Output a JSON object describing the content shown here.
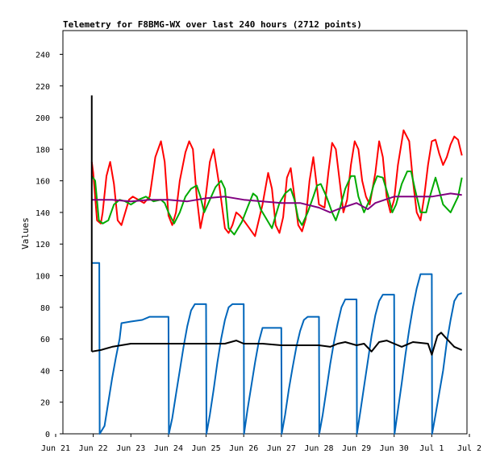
{
  "chart_data": {
    "type": "line",
    "title": "Telemetry for F8BMG-WX over last 240 hours (2712 points)",
    "xlabel": "",
    "ylabel": "Values",
    "x_ticks": [
      "Jun 21",
      "Jun 22",
      "Jun 23",
      "Jun 24",
      "Jun 25",
      "Jun 26",
      "Jun 27",
      "Jun 28",
      "Jun 29",
      "Jun 30",
      "Jul 1",
      "Jul 2"
    ],
    "y_ticks": [
      0,
      20,
      40,
      60,
      80,
      100,
      120,
      140,
      160,
      180,
      200,
      220,
      240
    ],
    "ylim": [
      0,
      255
    ],
    "xlim": [
      0,
      11
    ],
    "grid": false,
    "colors": {
      "red": "#ff0000",
      "green": "#00aa00",
      "purple": "#800080",
      "blue": "#0066bb",
      "black": "#000000"
    },
    "series": [
      {
        "color": "red",
        "x": [
          0.96,
          1.0,
          1.1,
          1.2,
          1.25,
          1.35,
          1.45,
          1.55,
          1.65,
          1.75,
          1.85,
          1.95,
          2.05,
          2.2,
          2.35,
          2.5,
          2.65,
          2.8,
          2.9,
          3.0,
          3.1,
          3.2,
          3.3,
          3.45,
          3.55,
          3.65,
          3.75,
          3.85,
          3.95,
          4.1,
          4.2,
          4.35,
          4.5,
          4.6,
          4.7,
          4.8,
          4.9,
          5.0,
          5.15,
          5.3,
          5.5,
          5.65,
          5.75,
          5.85,
          5.95,
          6.05,
          6.15,
          6.25,
          6.35,
          6.45,
          6.55,
          6.65,
          6.75,
          6.85,
          7.0,
          7.15,
          7.25,
          7.35,
          7.45,
          7.55,
          7.65,
          7.75,
          7.85,
          7.95,
          8.05,
          8.15,
          8.25,
          8.35,
          8.5,
          8.6,
          8.7,
          8.8,
          8.9,
          9.0,
          9.1,
          9.25,
          9.4,
          9.5,
          9.6,
          9.7,
          9.8,
          9.9,
          10.0,
          10.1,
          10.2,
          10.3,
          10.4,
          10.5,
          10.6,
          10.7,
          10.8
        ],
        "y": [
          172,
          165,
          135,
          133,
          140,
          163,
          172,
          158,
          135,
          132,
          140,
          148,
          150,
          148,
          146,
          150,
          175,
          185,
          172,
          138,
          132,
          140,
          160,
          178,
          185,
          180,
          150,
          130,
          142,
          172,
          180,
          157,
          130,
          127,
          132,
          140,
          138,
          135,
          130,
          125,
          145,
          165,
          155,
          132,
          127,
          137,
          162,
          168,
          150,
          132,
          128,
          136,
          160,
          175,
          145,
          143,
          165,
          184,
          180,
          160,
          140,
          148,
          170,
          185,
          180,
          160,
          150,
          145,
          165,
          185,
          175,
          150,
          140,
          148,
          170,
          192,
          185,
          160,
          140,
          135,
          150,
          170,
          185,
          186,
          177,
          170,
          175,
          183,
          188,
          186,
          176
        ]
      },
      {
        "color": "green",
        "x": [
          0.96,
          1.05,
          1.15,
          1.25,
          1.4,
          1.55,
          1.7,
          1.85,
          2.0,
          2.2,
          2.4,
          2.6,
          2.8,
          2.9,
          3.0,
          3.15,
          3.3,
          3.45,
          3.6,
          3.75,
          3.85,
          3.95,
          4.1,
          4.25,
          4.4,
          4.5,
          4.6,
          4.75,
          4.95,
          5.1,
          5.25,
          5.35,
          5.45,
          5.6,
          5.75,
          5.85,
          5.95,
          6.1,
          6.25,
          6.35,
          6.45,
          6.55,
          6.7,
          6.85,
          6.95,
          7.05,
          7.2,
          7.35,
          7.45,
          7.55,
          7.7,
          7.85,
          7.95,
          8.05,
          8.2,
          8.35,
          8.45,
          8.55,
          8.7,
          8.85,
          8.95,
          9.05,
          9.2,
          9.35,
          9.45,
          9.55,
          9.7,
          9.85,
          9.95,
          10.1,
          10.3,
          10.5,
          10.7,
          10.8
        ],
        "y": [
          163,
          160,
          135,
          133,
          135,
          145,
          148,
          147,
          145,
          148,
          150,
          147,
          148,
          146,
          140,
          133,
          140,
          150,
          155,
          157,
          150,
          140,
          148,
          156,
          160,
          155,
          130,
          126,
          134,
          143,
          152,
          150,
          142,
          136,
          130,
          138,
          146,
          152,
          155,
          148,
          136,
          132,
          140,
          150,
          157,
          158,
          150,
          140,
          135,
          142,
          155,
          163,
          163,
          150,
          140,
          148,
          157,
          163,
          162,
          150,
          140,
          145,
          158,
          166,
          166,
          155,
          140,
          140,
          150,
          162,
          145,
          140,
          150,
          162
        ]
      },
      {
        "color": "purple",
        "x": [
          0.96,
          1.5,
          2.0,
          2.5,
          3.0,
          3.5,
          4.0,
          4.5,
          5.0,
          5.5,
          6.0,
          6.5,
          7.0,
          7.3,
          7.5,
          8.0,
          8.3,
          8.5,
          9.0,
          9.5,
          10.0,
          10.5,
          10.8
        ],
        "y": [
          148,
          148,
          147,
          148,
          148,
          147,
          149,
          150,
          148,
          147,
          146,
          146,
          143,
          140,
          142,
          146,
          142,
          146,
          150,
          150,
          150,
          152,
          151
        ]
      },
      {
        "color": "blue",
        "x": [
          0.96,
          1.16,
          1.17,
          1.3,
          1.4,
          1.5,
          1.6,
          1.7,
          1.75,
          2.0,
          2.3,
          2.5,
          2.8,
          3.0,
          3.01,
          3.1,
          3.2,
          3.3,
          3.4,
          3.5,
          3.6,
          3.7,
          3.75,
          4.0,
          4.01,
          4.1,
          4.2,
          4.3,
          4.4,
          4.5,
          4.6,
          4.7,
          5.0,
          5.01,
          5.1,
          5.2,
          5.3,
          5.4,
          5.5,
          5.7,
          5.8,
          6.0,
          6.01,
          6.1,
          6.2,
          6.3,
          6.4,
          6.5,
          6.6,
          6.7,
          7.0,
          7.01,
          7.1,
          7.2,
          7.3,
          7.4,
          7.5,
          7.6,
          7.7,
          8.0,
          8.01,
          8.1,
          8.2,
          8.3,
          8.4,
          8.5,
          8.6,
          8.7,
          9.0,
          9.01,
          9.1,
          9.2,
          9.3,
          9.4,
          9.5,
          9.6,
          9.7,
          10.0,
          10.01,
          10.1,
          10.2,
          10.3,
          10.4,
          10.5,
          10.6,
          10.7,
          10.8
        ],
        "y": [
          108,
          108,
          0,
          5,
          20,
          35,
          48,
          60,
          70,
          71,
          72,
          74,
          74,
          74,
          0,
          10,
          25,
          40,
          55,
          68,
          78,
          82,
          82,
          82,
          0,
          12,
          28,
          45,
          60,
          72,
          80,
          82,
          82,
          0,
          15,
          30,
          45,
          58,
          67,
          67,
          67,
          67,
          0,
          12,
          28,
          42,
          55,
          65,
          72,
          74,
          74,
          0,
          12,
          28,
          44,
          58,
          70,
          80,
          85,
          85,
          0,
          14,
          30,
          46,
          62,
          75,
          84,
          88,
          88,
          0,
          15,
          32,
          50,
          66,
          80,
          92,
          101,
          101,
          0,
          12,
          26,
          40,
          58,
          72,
          84,
          88,
          89
        ]
      },
      {
        "color": "black",
        "x": [
          0.96,
          1.2,
          1.5,
          2.0,
          2.5,
          3.0,
          3.5,
          4.0,
          4.5,
          4.8,
          5.0,
          5.5,
          6.0,
          6.5,
          7.0,
          7.3,
          7.5,
          7.7,
          8.0,
          8.2,
          8.4,
          8.6,
          8.8,
          9.0,
          9.2,
          9.5,
          9.9,
          10.0,
          10.15,
          10.25,
          10.4,
          10.6,
          10.8
        ],
        "y": [
          52,
          53,
          55,
          57,
          57,
          57,
          57,
          57,
          57,
          59,
          57,
          57,
          56,
          56,
          56,
          55,
          57,
          58,
          56,
          57,
          52,
          58,
          59,
          57,
          55,
          58,
          57,
          50,
          62,
          64,
          60,
          55,
          53
        ]
      }
    ],
    "spikes": [
      {
        "color": "black",
        "x": 0.96,
        "y_from": 52,
        "y_to": 214
      }
    ]
  }
}
